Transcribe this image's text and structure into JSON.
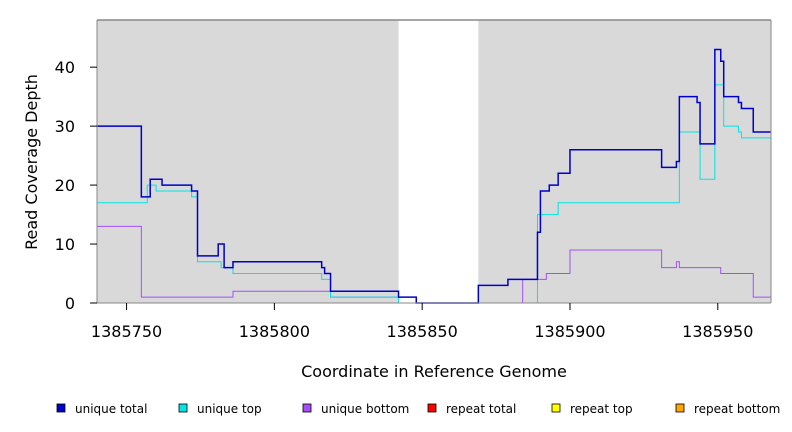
{
  "chart_data": {
    "type": "line",
    "xlabel": "Coordinate in Reference Genome",
    "ylabel": "Read Coverage Depth",
    "xlim": [
      1385740,
      1385968
    ],
    "ylim": [
      0,
      48
    ],
    "x_ticks": [
      1385750,
      1385800,
      1385850,
      1385900,
      1385950
    ],
    "y_ticks": [
      0,
      10,
      20,
      30,
      40
    ],
    "grid": false,
    "legend_position": "bottom",
    "shaded_regions": [
      {
        "x_start": 1385740,
        "x_end": 1385842,
        "color": "#d9d9d9"
      },
      {
        "x_start": 1385869,
        "x_end": 1385968,
        "color": "#d9d9d9"
      }
    ],
    "series": [
      {
        "name": "unique total",
        "color": "#0000cc",
        "steps": [
          [
            1385740,
            30
          ],
          [
            1385755,
            18
          ],
          [
            1385758,
            21
          ],
          [
            1385762,
            20
          ],
          [
            1385772,
            19
          ],
          [
            1385774,
            8
          ],
          [
            1385781,
            10
          ],
          [
            1385783,
            6
          ],
          [
            1385786,
            7
          ],
          [
            1385816,
            6
          ],
          [
            1385817,
            5
          ],
          [
            1385819,
            2
          ],
          [
            1385842,
            1
          ],
          [
            1385848,
            0
          ],
          [
            1385869,
            3
          ],
          [
            1385879,
            4
          ],
          [
            1385889,
            12
          ],
          [
            1385890,
            19
          ],
          [
            1385893,
            20
          ],
          [
            1385896,
            22
          ],
          [
            1385900,
            26
          ],
          [
            1385931,
            23
          ],
          [
            1385936,
            24
          ],
          [
            1385937,
            35
          ],
          [
            1385943,
            34
          ],
          [
            1385944,
            27
          ],
          [
            1385949,
            43
          ],
          [
            1385951,
            41
          ],
          [
            1385952,
            35
          ],
          [
            1385957,
            34
          ],
          [
            1385958,
            33
          ],
          [
            1385962,
            29
          ],
          [
            1385968,
            29
          ]
        ]
      },
      {
        "name": "unique top",
        "color": "#00e5e5",
        "steps": [
          [
            1385740,
            17
          ],
          [
            1385757,
            20
          ],
          [
            1385760,
            19
          ],
          [
            1385772,
            18
          ],
          [
            1385774,
            7
          ],
          [
            1385782,
            6
          ],
          [
            1385786,
            5
          ],
          [
            1385816,
            4
          ],
          [
            1385819,
            1
          ],
          [
            1385842,
            0
          ],
          [
            1385889,
            15
          ],
          [
            1385896,
            17
          ],
          [
            1385937,
            29
          ],
          [
            1385944,
            21
          ],
          [
            1385949,
            37
          ],
          [
            1385952,
            30
          ],
          [
            1385957,
            29
          ],
          [
            1385958,
            28
          ],
          [
            1385968,
            28
          ]
        ]
      },
      {
        "name": "unique bottom",
        "color": "#a64dff",
        "steps": [
          [
            1385740,
            13
          ],
          [
            1385755,
            1
          ],
          [
            1385786,
            2
          ],
          [
            1385819,
            1
          ],
          [
            1385842,
            0
          ],
          [
            1385884,
            4
          ],
          [
            1385892,
            5
          ],
          [
            1385900,
            9
          ],
          [
            1385931,
            6
          ],
          [
            1385936,
            7
          ],
          [
            1385937,
            6
          ],
          [
            1385951,
            5
          ],
          [
            1385962,
            1
          ],
          [
            1385968,
            1
          ]
        ]
      },
      {
        "name": "repeat total",
        "color": "#ff0000",
        "steps": [
          [
            1385740,
            0
          ],
          [
            1385968,
            0
          ]
        ]
      },
      {
        "name": "repeat top",
        "color": "#ffff00",
        "steps": [
          [
            1385740,
            0
          ],
          [
            1385968,
            0
          ]
        ]
      },
      {
        "name": "repeat bottom",
        "color": "#ffa500",
        "steps": [
          [
            1385740,
            0
          ],
          [
            1385968,
            0
          ]
        ]
      }
    ]
  }
}
